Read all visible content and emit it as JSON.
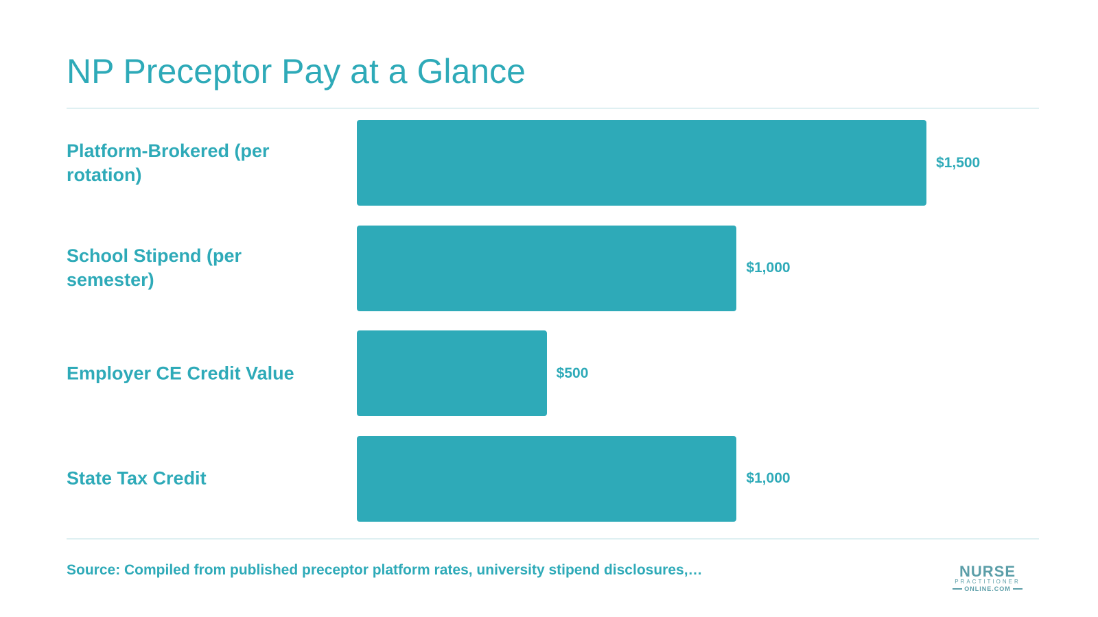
{
  "title": "NP Preceptor Pay at a Glance",
  "source": "Source: Compiled from published preceptor platform rates, university stipend disclosures,…",
  "logo": {
    "main": "NURSE",
    "sub": "PRACTITIONER",
    "domain": "ONLINE.COM"
  },
  "colors": {
    "accent": "#2eaab8",
    "rule": "#dff0f2",
    "logo": "#5b9ea8"
  },
  "chart_data": {
    "type": "bar",
    "orientation": "horizontal",
    "title": "NP Preceptor Pay at a Glance",
    "categories": [
      "Platform-Brokered (per rotation)",
      "School Stipend (per semester)",
      "Employer CE Credit Value",
      "State Tax Credit"
    ],
    "values": [
      1500,
      1000,
      500,
      1000
    ],
    "value_labels": [
      "$1,500",
      "$1,000",
      "$500",
      "$1,000"
    ],
    "xlim": [
      0,
      1500
    ],
    "grid": false,
    "legend": "none"
  }
}
